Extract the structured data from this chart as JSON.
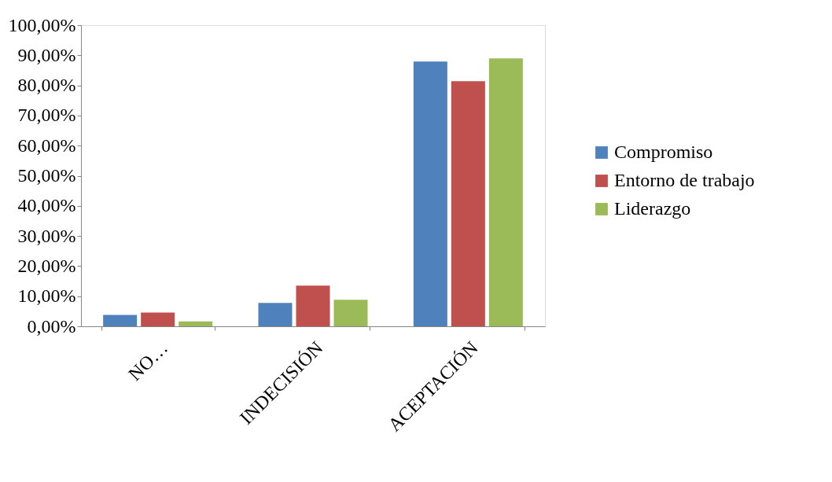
{
  "chart_data": {
    "type": "bar",
    "categories": [
      "NO…",
      "INDECISIÓN",
      "ACEPTACIÓN"
    ],
    "series": [
      {
        "name": "Compromiso",
        "color": "#4f81bd",
        "values": [
          3.8,
          7.8,
          87.9
        ]
      },
      {
        "name": "Entorno de trabajo",
        "color": "#c0504d",
        "values": [
          4.6,
          13.5,
          81.4
        ]
      },
      {
        "name": "Liderazgo",
        "color": "#9bbb59",
        "values": [
          1.6,
          8.8,
          89.0
        ]
      }
    ],
    "ylim": [
      0,
      100
    ],
    "yticks": [
      {
        "value": 0,
        "label": "0,00%"
      },
      {
        "value": 10,
        "label": "10,00%"
      },
      {
        "value": 20,
        "label": "20,00%"
      },
      {
        "value": 30,
        "label": "30,00%"
      },
      {
        "value": 40,
        "label": "40,00%"
      },
      {
        "value": 50,
        "label": "50,00%"
      },
      {
        "value": 60,
        "label": "60,00%"
      },
      {
        "value": 70,
        "label": "70,00%"
      },
      {
        "value": 80,
        "label": "80,00%"
      },
      {
        "value": 90,
        "label": "90,00%"
      },
      {
        "value": 100,
        "label": "100,00%"
      }
    ],
    "grid": false,
    "legend": "right"
  }
}
